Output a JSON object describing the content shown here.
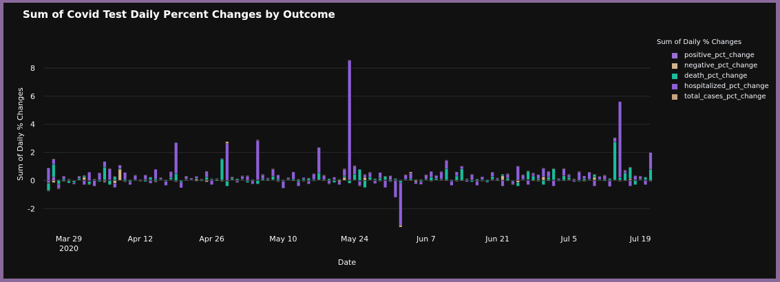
{
  "chart_data": {
    "type": "bar",
    "barmode": "relative",
    "title": "Sum of Covid Test Daily Percent Changes by Outcome",
    "xlabel": "Date",
    "ylabel": "Sum of Daily % Changes",
    "ylim": [
      -3.6,
      10.2
    ],
    "xlim": [
      "2020-03-24",
      "2020-07-21"
    ],
    "grid": true,
    "legend_position": "right",
    "legend_title": "Sum of Daily % Changes",
    "y_ticks": [
      -2,
      0,
      2,
      4,
      6,
      8
    ],
    "x_ticks": [
      {
        "date": "2020-03-29",
        "label": "Mar 29",
        "sublabel": "2020"
      },
      {
        "date": "2020-04-12",
        "label": "Apr 12",
        "sublabel": ""
      },
      {
        "date": "2020-04-26",
        "label": "Apr 26",
        "sublabel": ""
      },
      {
        "date": "2020-05-10",
        "label": "May 10",
        "sublabel": ""
      },
      {
        "date": "2020-05-24",
        "label": "May 24",
        "sublabel": ""
      },
      {
        "date": "2020-06-07",
        "label": "Jun 7",
        "sublabel": ""
      },
      {
        "date": "2020-06-21",
        "label": "Jun 21",
        "sublabel": ""
      },
      {
        "date": "2020-07-05",
        "label": "Jul 5",
        "sublabel": ""
      },
      {
        "date": "2020-07-19",
        "label": "Jul 19",
        "sublabel": ""
      }
    ],
    "start_date": "2020-03-25",
    "series": [
      {
        "name": "positive_pct_change",
        "color": "#9b6ed8",
        "values": [
          -0.15,
          0.25,
          0.03,
          -0.05,
          0.02,
          -0.03,
          0.03,
          0.04,
          -0.05,
          0.02,
          0.02,
          -0.1,
          0.02,
          0.03,
          0.02,
          -0.05,
          0.03,
          -0.02,
          0.02,
          0.05,
          0.02,
          -0.05,
          0.03,
          0.02,
          0.04,
          -0.05,
          0.02,
          0.03,
          0.02,
          -0.03,
          0.02,
          0.05,
          0.02,
          0.03,
          -0.02,
          0.02,
          0.03,
          -0.03,
          0.05,
          0.02,
          0.03,
          0.02,
          -0.02,
          0.02,
          0.04,
          -0.03,
          0.02,
          0.03,
          0.02,
          0.03,
          -0.02,
          0.02,
          0.05,
          0.03,
          0.02,
          -0.02,
          0.02,
          0.03,
          0.02,
          0.03,
          0.02,
          -0.03,
          0.02,
          0.04,
          0.02,
          -0.02,
          0.02,
          0.03,
          0.02,
          0.05,
          0.02,
          -0.03,
          0.02,
          0.03,
          0.02,
          -0.02,
          0.03,
          0.02,
          0.04,
          0.02,
          -0.02,
          0.02,
          0.03,
          0.02,
          0.02,
          -0.03,
          0.02,
          0.05,
          0.02,
          0.03,
          0.02,
          -0.02,
          0.02,
          0.03,
          0.04,
          0.02,
          -0.02,
          0.02,
          0.03,
          0.02,
          0.02,
          0.03,
          0.02,
          0.04,
          0.02,
          -0.02,
          0.02,
          0.03,
          0.02,
          0.02,
          0.03,
          0.02,
          -0.02,
          0.02,
          0.03,
          0.02,
          0.04,
          0.02,
          -0.02
        ]
      },
      {
        "name": "negative_pct_change",
        "color": "#d2b48c",
        "values": [
          -0.05,
          -0.15,
          0.03,
          -0.02,
          -0.03,
          0.02,
          0.02,
          0.2,
          -0.02,
          0.03,
          0.02,
          0.05,
          0.02,
          -0.2,
          0.8,
          -0.03,
          0.02,
          0.02,
          -0.02,
          0.03,
          0.02,
          -0.05,
          0.02,
          0.02,
          0.03,
          -0.03,
          -0.02,
          0.05,
          0.02,
          0.1,
          0.03,
          -0.1,
          0.02,
          -0.02,
          0.03,
          -0.05,
          0.02,
          0.05,
          0.02,
          -0.05,
          -0.03,
          0.02,
          0.02,
          -0.02,
          0.02,
          -0.03,
          0.02,
          0.02,
          -0.02,
          0.05,
          0.02,
          -0.05,
          0.02,
          0.02,
          -0.02,
          0.03,
          0.02,
          -0.1,
          0.2,
          0.02,
          0.03,
          -0.03,
          0.2,
          0.02,
          -0.02,
          0.02,
          0.03,
          -0.05,
          0.02,
          -0.02,
          0.03,
          0.02,
          -0.1,
          0.02,
          0.03,
          -0.02,
          0.02,
          0.05,
          -0.03,
          0.02,
          0.02,
          -0.02,
          0.03,
          0.02,
          -0.05,
          0.02,
          0.02,
          0.03,
          -0.02,
          0.3,
          -0.03,
          0.02,
          -0.15,
          0.02,
          0.03,
          -0.02,
          0.02,
          0.25,
          -0.03,
          0.02,
          0.02,
          -0.02,
          0.05,
          0.02,
          -0.02,
          0.03,
          0.02,
          0.2,
          0.02,
          0.05,
          -0.03,
          0.02,
          0.02,
          -0.02,
          0.1,
          0.02,
          0.02,
          0.02
        ]
      },
      {
        "name": "death_pct_change",
        "color": "#1abc9c",
        "values": [
          -0.5,
          0.9,
          -0.25,
          0.1,
          -0.15,
          -0.12,
          0.1,
          0.12,
          -0.2,
          0.05,
          -0.08,
          0.9,
          -0.3,
          0.25,
          0.02,
          0.08,
          -0.1,
          0.05,
          0.02,
          -0.08,
          0.2,
          0.1,
          0.05,
          -0.05,
          0.15,
          0.5,
          -0.1,
          0.03,
          0.02,
          0.05,
          -0.05,
          0.2,
          0.08,
          0.05,
          1.5,
          -0.35,
          0.1,
          0.08,
          0.05,
          -0.1,
          0.05,
          -0.25,
          0.1,
          0.05,
          0.25,
          0.1,
          -0.05,
          0.05,
          0.08,
          -0.1,
          0.1,
          0.15,
          -0.05,
          0.5,
          0.05,
          0.1,
          -0.15,
          0.05,
          0.1,
          -0.2,
          0.4,
          0.8,
          -0.5,
          0.2,
          0.1,
          0.15,
          0.25,
          -0.05,
          0.1,
          -0.15,
          0.05,
          0.1,
          0.05,
          -0.08,
          0.05,
          0.25,
          0.1,
          0.05,
          0.8,
          -0.05,
          0.3,
          0.8,
          0.05,
          -0.1,
          0.08,
          0.05,
          -0.1,
          0.2,
          0.05,
          0.1,
          0.15,
          -0.05,
          -0.25,
          0.05,
          0.6,
          0.3,
          0.1,
          -0.3,
          0.2,
          0.8,
          -0.05,
          0.3,
          0.15,
          0.05,
          -0.05,
          0.1,
          0.05,
          0.2,
          0.05,
          -0.05,
          0.1,
          2.7,
          0.2,
          0.5,
          0.8,
          -0.3,
          0.05,
          0.2,
          0.8,
          -0.5
        ]
      },
      {
        "name": "hospitalized_pct_change",
        "color": "#8e5fd9",
        "values": [
          0.9,
          0.35,
          -0.3,
          0.2,
          0.05,
          -0.1,
          0.15,
          -0.3,
          0.6,
          -0.4,
          0.5,
          0.4,
          0.8,
          -0.3,
          0.25,
          0.5,
          -0.2,
          0.3,
          0.05,
          0.3,
          -0.2,
          0.7,
          0.1,
          -0.3,
          0.4,
          2.2,
          -0.4,
          0.2,
          0.1,
          0.15,
          0.05,
          0.4,
          -0.3,
          0.05,
          0.05,
          2.6,
          0.1,
          -0.1,
          0.2,
          0.3,
          -0.2,
          2.8,
          0.3,
          0.1,
          0.5,
          0.3,
          -0.5,
          0.1,
          0.5,
          -0.3,
          0.1,
          -0.2,
          0.4,
          1.8,
          0.3,
          -0.2,
          0.2,
          -0.2,
          0.5,
          8.5,
          0.6,
          -0.3,
          0.2,
          0.3,
          -0.2,
          0.4,
          -0.5,
          0.3,
          -1.2,
          -3.0,
          0.3,
          0.4,
          -0.15,
          -0.2,
          0.3,
          0.4,
          0.2,
          0.5,
          0.6,
          -0.3,
          0.3,
          0.2,
          -0.1,
          0.4,
          -0.3,
          0.2,
          -0.05,
          0.3,
          0.1,
          -0.4,
          0.3,
          -0.2,
          1.0,
          0.3,
          -0.3,
          0.2,
          0.3,
          0.6,
          0.4,
          -0.4,
          0.1,
          0.5,
          0.2,
          -0.1,
          0.6,
          0.2,
          0.5,
          -0.4,
          0.2,
          0.3,
          -0.4,
          0.3,
          5.4,
          0.2,
          -0.4,
          0.3,
          0.2,
          -0.3,
          1.2,
          -0.2,
          -0.3
        ]
      },
      {
        "name": "total_cases_pct_change",
        "color": "#c9a27e",
        "values": [
          -0.05,
          0.05,
          -0.05,
          0.02,
          0.03,
          -0.02,
          0.02,
          0.02,
          -0.03,
          0.02,
          0.02,
          -0.05,
          0.02,
          0.02,
          0.02,
          -0.03,
          0.02,
          0.02,
          -0.02,
          0.03,
          0.02,
          -0.02,
          0.02,
          0.02,
          0.03,
          -0.02,
          0.02,
          0.02,
          0.02,
          -0.03,
          0.02,
          0.02,
          0.02,
          0.03,
          -0.02,
          0.15,
          0.02,
          -0.02,
          0.02,
          0.03,
          -0.02,
          0.05,
          0.02,
          0.02,
          0.03,
          -0.02,
          0.02,
          0.02,
          0.02,
          0.03,
          -0.02,
          0.02,
          0.03,
          0.02,
          0.02,
          -0.02,
          0.02,
          0.03,
          0.02,
          0.03,
          0.02,
          -0.02,
          0.02,
          0.03,
          0.02,
          -0.02,
          0.02,
          0.03,
          0.02,
          -0.15,
          0.02,
          0.1,
          0.02,
          0.03,
          0.02,
          -0.02,
          0.03,
          0.02,
          0.02,
          0.02,
          -0.02,
          0.02,
          0.03,
          0.02,
          0.02,
          -0.02,
          0.02,
          0.03,
          0.02,
          0.03,
          0.02,
          -0.02,
          0.02,
          0.03,
          0.02,
          0.02,
          -0.02,
          0.02,
          0.03,
          0.02,
          0.02,
          0.03,
          0.02,
          0.02,
          0.02,
          -0.02,
          0.02,
          0.03,
          0.02,
          0.02,
          0.03,
          0.02,
          -0.02,
          0.02,
          0.03,
          0.02,
          0.02,
          0.02,
          -0.02
        ]
      }
    ]
  }
}
